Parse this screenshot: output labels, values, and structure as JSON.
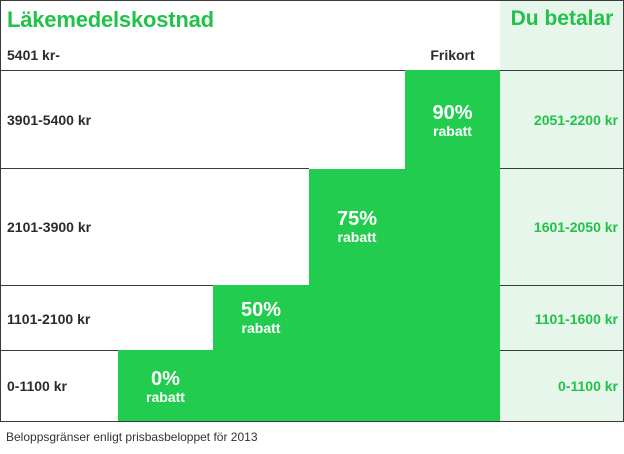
{
  "header": {
    "left_title": "Läkemedelskostnad",
    "right_title": "Du betalar"
  },
  "rows": [
    {
      "cost": "5401 kr-",
      "pay": ""
    },
    {
      "cost": "3901-5400 kr",
      "pay": "2051-2200 kr"
    },
    {
      "cost": "2101-3900 kr",
      "pay": "1601-2050 kr"
    },
    {
      "cost": "1101-2100 kr",
      "pay": "1101-1600 kr"
    },
    {
      "cost": "0-1100 kr",
      "pay": "0-1100 kr"
    }
  ],
  "steps": [
    {
      "percent": "0%",
      "word": "rabatt"
    },
    {
      "percent": "50%",
      "word": "rabatt"
    },
    {
      "percent": "75%",
      "word": "rabatt"
    },
    {
      "percent": "90%",
      "word": "rabatt"
    }
  ],
  "frikort_label": "Frikort",
  "footnote": "Beloppsgränser enligt prisbasbeloppet för 2013",
  "colors": {
    "accent": "#22c24a",
    "step_fill": "#22cc4f",
    "right_bg": "#e7f6ea",
    "border": "#3a3a3a"
  }
}
